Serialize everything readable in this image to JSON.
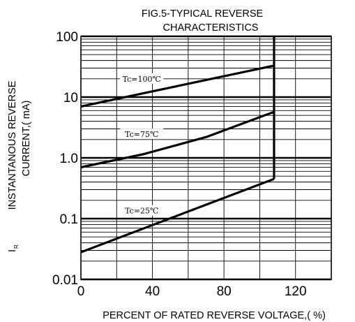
{
  "chart_data": {
    "type": "line",
    "title_lines": [
      "FIG.5-TYPICAL REVERSE",
      "CHARACTERISTICS"
    ],
    "xlabel": "PERCENT OF RATED REVERSE VOLTAGE,( %)",
    "ylabel_lines": [
      "I",
      "R",
      "INSTANTANOUS REVERSE",
      "CURRENT,( mA)"
    ],
    "x_ticks": [
      "0",
      "40",
      "80",
      "120"
    ],
    "x_tick_values": [
      0,
      40,
      80,
      120
    ],
    "xlim": [
      0,
      140
    ],
    "y_scale": "log",
    "ylim": [
      0.01,
      100
    ],
    "y_ticks": [
      "0.01",
      "0.1",
      "1.0",
      "10",
      "100"
    ],
    "y_tick_values": [
      0.01,
      0.1,
      1,
      10,
      100
    ],
    "grid": true,
    "series": [
      {
        "name": "Tc=100℃",
        "x": [
          0,
          108
        ],
        "y": [
          7,
          33
        ],
        "label_at": [
          34,
          20
        ]
      },
      {
        "name": "Tc=75℃",
        "x": [
          0,
          35,
          70,
          108
        ],
        "y": [
          0.7,
          1.15,
          2.2,
          5.7
        ],
        "label_at": [
          34,
          2.45
        ]
      },
      {
        "name": "Tc=25℃",
        "x": [
          0,
          108
        ],
        "y": [
          0.028,
          0.45
        ],
        "label_at": [
          34,
          0.135
        ]
      }
    ],
    "verticals": [
      {
        "x": 108,
        "y": [
          0.45,
          100
        ]
      }
    ]
  }
}
